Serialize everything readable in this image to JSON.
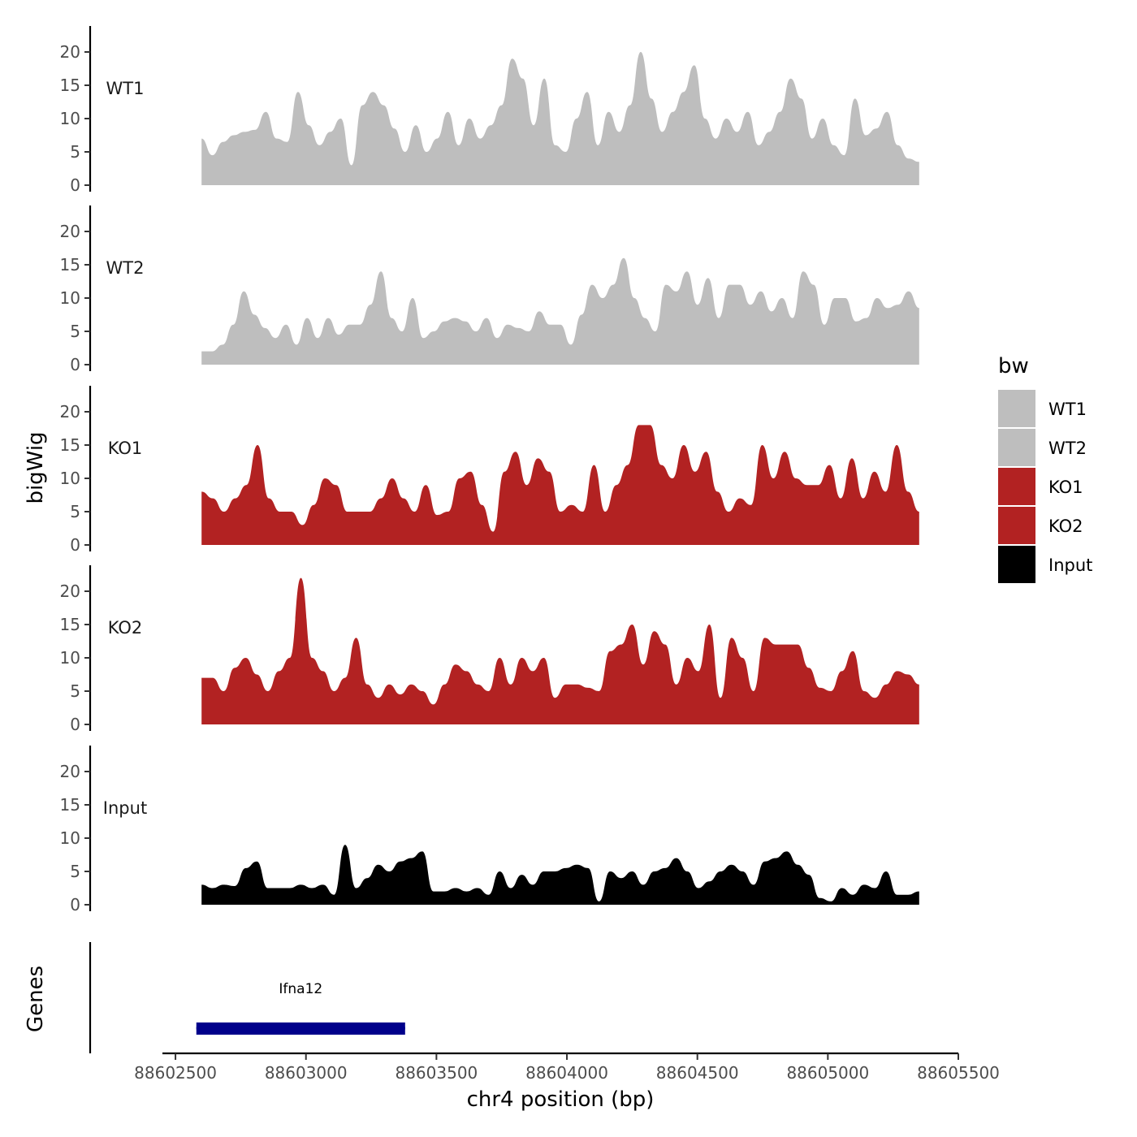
{
  "chart_data": {
    "type": "area",
    "ylabel": "bigWig",
    "xlabel": "chr4 position (bp)",
    "ylim": [
      0,
      24
    ],
    "yticks": [
      0,
      5,
      10,
      15,
      20
    ],
    "xlim": [
      88602450,
      88605500
    ],
    "xticks": [
      88602500,
      88603000,
      88603500,
      88604000,
      88604500,
      88605000,
      88605500
    ],
    "x_step": 50,
    "x_start": 88602600,
    "legend": {
      "title": "bw",
      "position": "right",
      "entries": [
        {
          "label": "WT1",
          "color": "#bebebe"
        },
        {
          "label": "WT2",
          "color": "#bebebe"
        },
        {
          "label": "KO1",
          "color": "#b22222"
        },
        {
          "label": "KO2",
          "color": "#b22222"
        },
        {
          "label": "Input",
          "color": "#000000"
        }
      ]
    },
    "series": [
      {
        "name": "WT1",
        "color": "#bebebe",
        "values": [
          7,
          4.5,
          6.5,
          7.5,
          8,
          8.3,
          11,
          7,
          6.5,
          14,
          9,
          6,
          8,
          10,
          3,
          12,
          14,
          12,
          8.5,
          5,
          9,
          5,
          7,
          11,
          6,
          10,
          7,
          9,
          12,
          19,
          16,
          9,
          16,
          6,
          5,
          10,
          14,
          6,
          11,
          8,
          12,
          20,
          13,
          8,
          11,
          14,
          18,
          10,
          7,
          10,
          8,
          11,
          6,
          8,
          11,
          16,
          13,
          7,
          10,
          6,
          4.5,
          13,
          7.5,
          8.5,
          11,
          6,
          4,
          3.5
        ]
      },
      {
        "name": "WT2",
        "color": "#bebebe",
        "values": [
          2,
          2,
          3,
          6,
          11,
          7.5,
          5.5,
          4,
          6,
          3,
          7,
          4,
          7,
          4.5,
          6,
          6,
          9,
          14,
          7,
          5,
          10,
          4,
          5,
          6.5,
          7,
          6.5,
          5,
          7,
          4,
          6,
          5.5,
          5,
          8,
          6,
          6,
          3,
          7.5,
          12,
          10,
          12,
          16,
          10,
          7,
          5,
          12,
          11,
          14,
          9,
          13,
          7,
          12,
          12,
          9,
          11,
          8,
          10,
          7,
          14,
          12,
          6,
          10,
          10,
          6.5,
          7,
          10,
          8.5,
          9,
          11,
          8.5
        ]
      },
      {
        "name": "KO1",
        "color": "#b22222",
        "values": [
          8,
          7,
          5,
          7,
          9,
          15,
          7,
          5,
          5,
          3,
          6,
          10,
          9,
          5,
          5,
          5,
          7,
          10,
          7,
          5,
          9,
          4.5,
          5,
          10,
          11,
          6,
          2,
          11,
          14,
          9,
          13,
          11,
          5,
          6,
          5,
          12,
          5,
          9,
          12,
          18,
          18,
          12,
          10,
          15,
          11,
          14,
          8,
          5,
          7,
          6,
          15,
          10,
          14,
          10,
          9,
          9,
          12,
          7,
          13,
          7,
          11,
          8,
          15,
          8,
          5
        ]
      },
      {
        "name": "KO2",
        "color": "#b22222",
        "values": [
          7,
          7,
          5,
          8.5,
          10,
          7.5,
          5,
          8,
          10,
          22,
          10,
          8,
          5,
          7,
          13,
          6,
          4,
          6,
          4.5,
          6,
          5,
          3,
          6,
          9,
          8,
          6,
          5,
          10,
          6,
          10,
          8,
          10,
          4,
          6,
          6,
          5.5,
          5,
          11,
          12,
          15,
          9,
          14,
          12,
          6,
          10,
          8,
          15,
          4,
          13,
          10,
          5,
          13,
          12,
          12,
          12,
          8.5,
          5.5,
          5,
          8,
          11,
          5,
          4,
          6,
          8,
          7.5,
          6
        ]
      },
      {
        "name": "Input",
        "color": "#000000",
        "values": [
          3,
          2.5,
          3,
          2.8,
          5.5,
          6.5,
          2.5,
          2.5,
          2.5,
          3,
          2.5,
          3,
          1.5,
          9,
          2.5,
          4,
          6,
          5,
          6.5,
          7,
          8,
          2,
          2,
          2.5,
          2,
          2.5,
          1.5,
          5,
          2.5,
          4.5,
          3,
          5,
          5,
          5.5,
          6,
          5.5,
          0.5,
          5,
          4,
          5,
          3,
          5,
          5.5,
          7,
          5,
          2.5,
          3.5,
          5,
          6,
          5,
          3,
          6.5,
          7,
          8,
          6,
          4.5,
          1,
          0.5,
          2.5,
          1.5,
          3,
          2.5,
          5,
          1.5,
          1.5,
          2
        ]
      }
    ],
    "genes_track": {
      "label": "Genes",
      "genes": [
        {
          "name": "Ifna12",
          "start": 88602580,
          "end": 88603380,
          "color": "#00008b"
        }
      ]
    }
  }
}
